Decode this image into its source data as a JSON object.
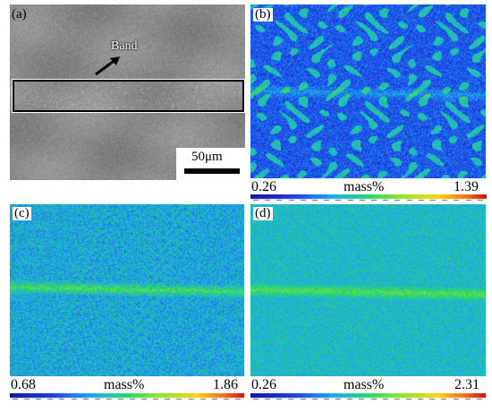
{
  "panels": {
    "a": {
      "label": "(a)",
      "band_label": "Band",
      "scale_bar": "50μm"
    },
    "b": {
      "label": "(b)",
      "min": "0.26",
      "unit": "mass%",
      "max": "1.39"
    },
    "c": {
      "label": "(c)",
      "min": "0.68",
      "unit": "mass%",
      "max": "1.86"
    },
    "d": {
      "label": "(d)",
      "min": "0.26",
      "unit": "mass%",
      "max": "2.31"
    }
  },
  "colors": {
    "sem_gray": "#8a8a8a",
    "map_blue": "#1f3fe0",
    "map_green": "#35d64a",
    "map_red": "#e0301e"
  }
}
